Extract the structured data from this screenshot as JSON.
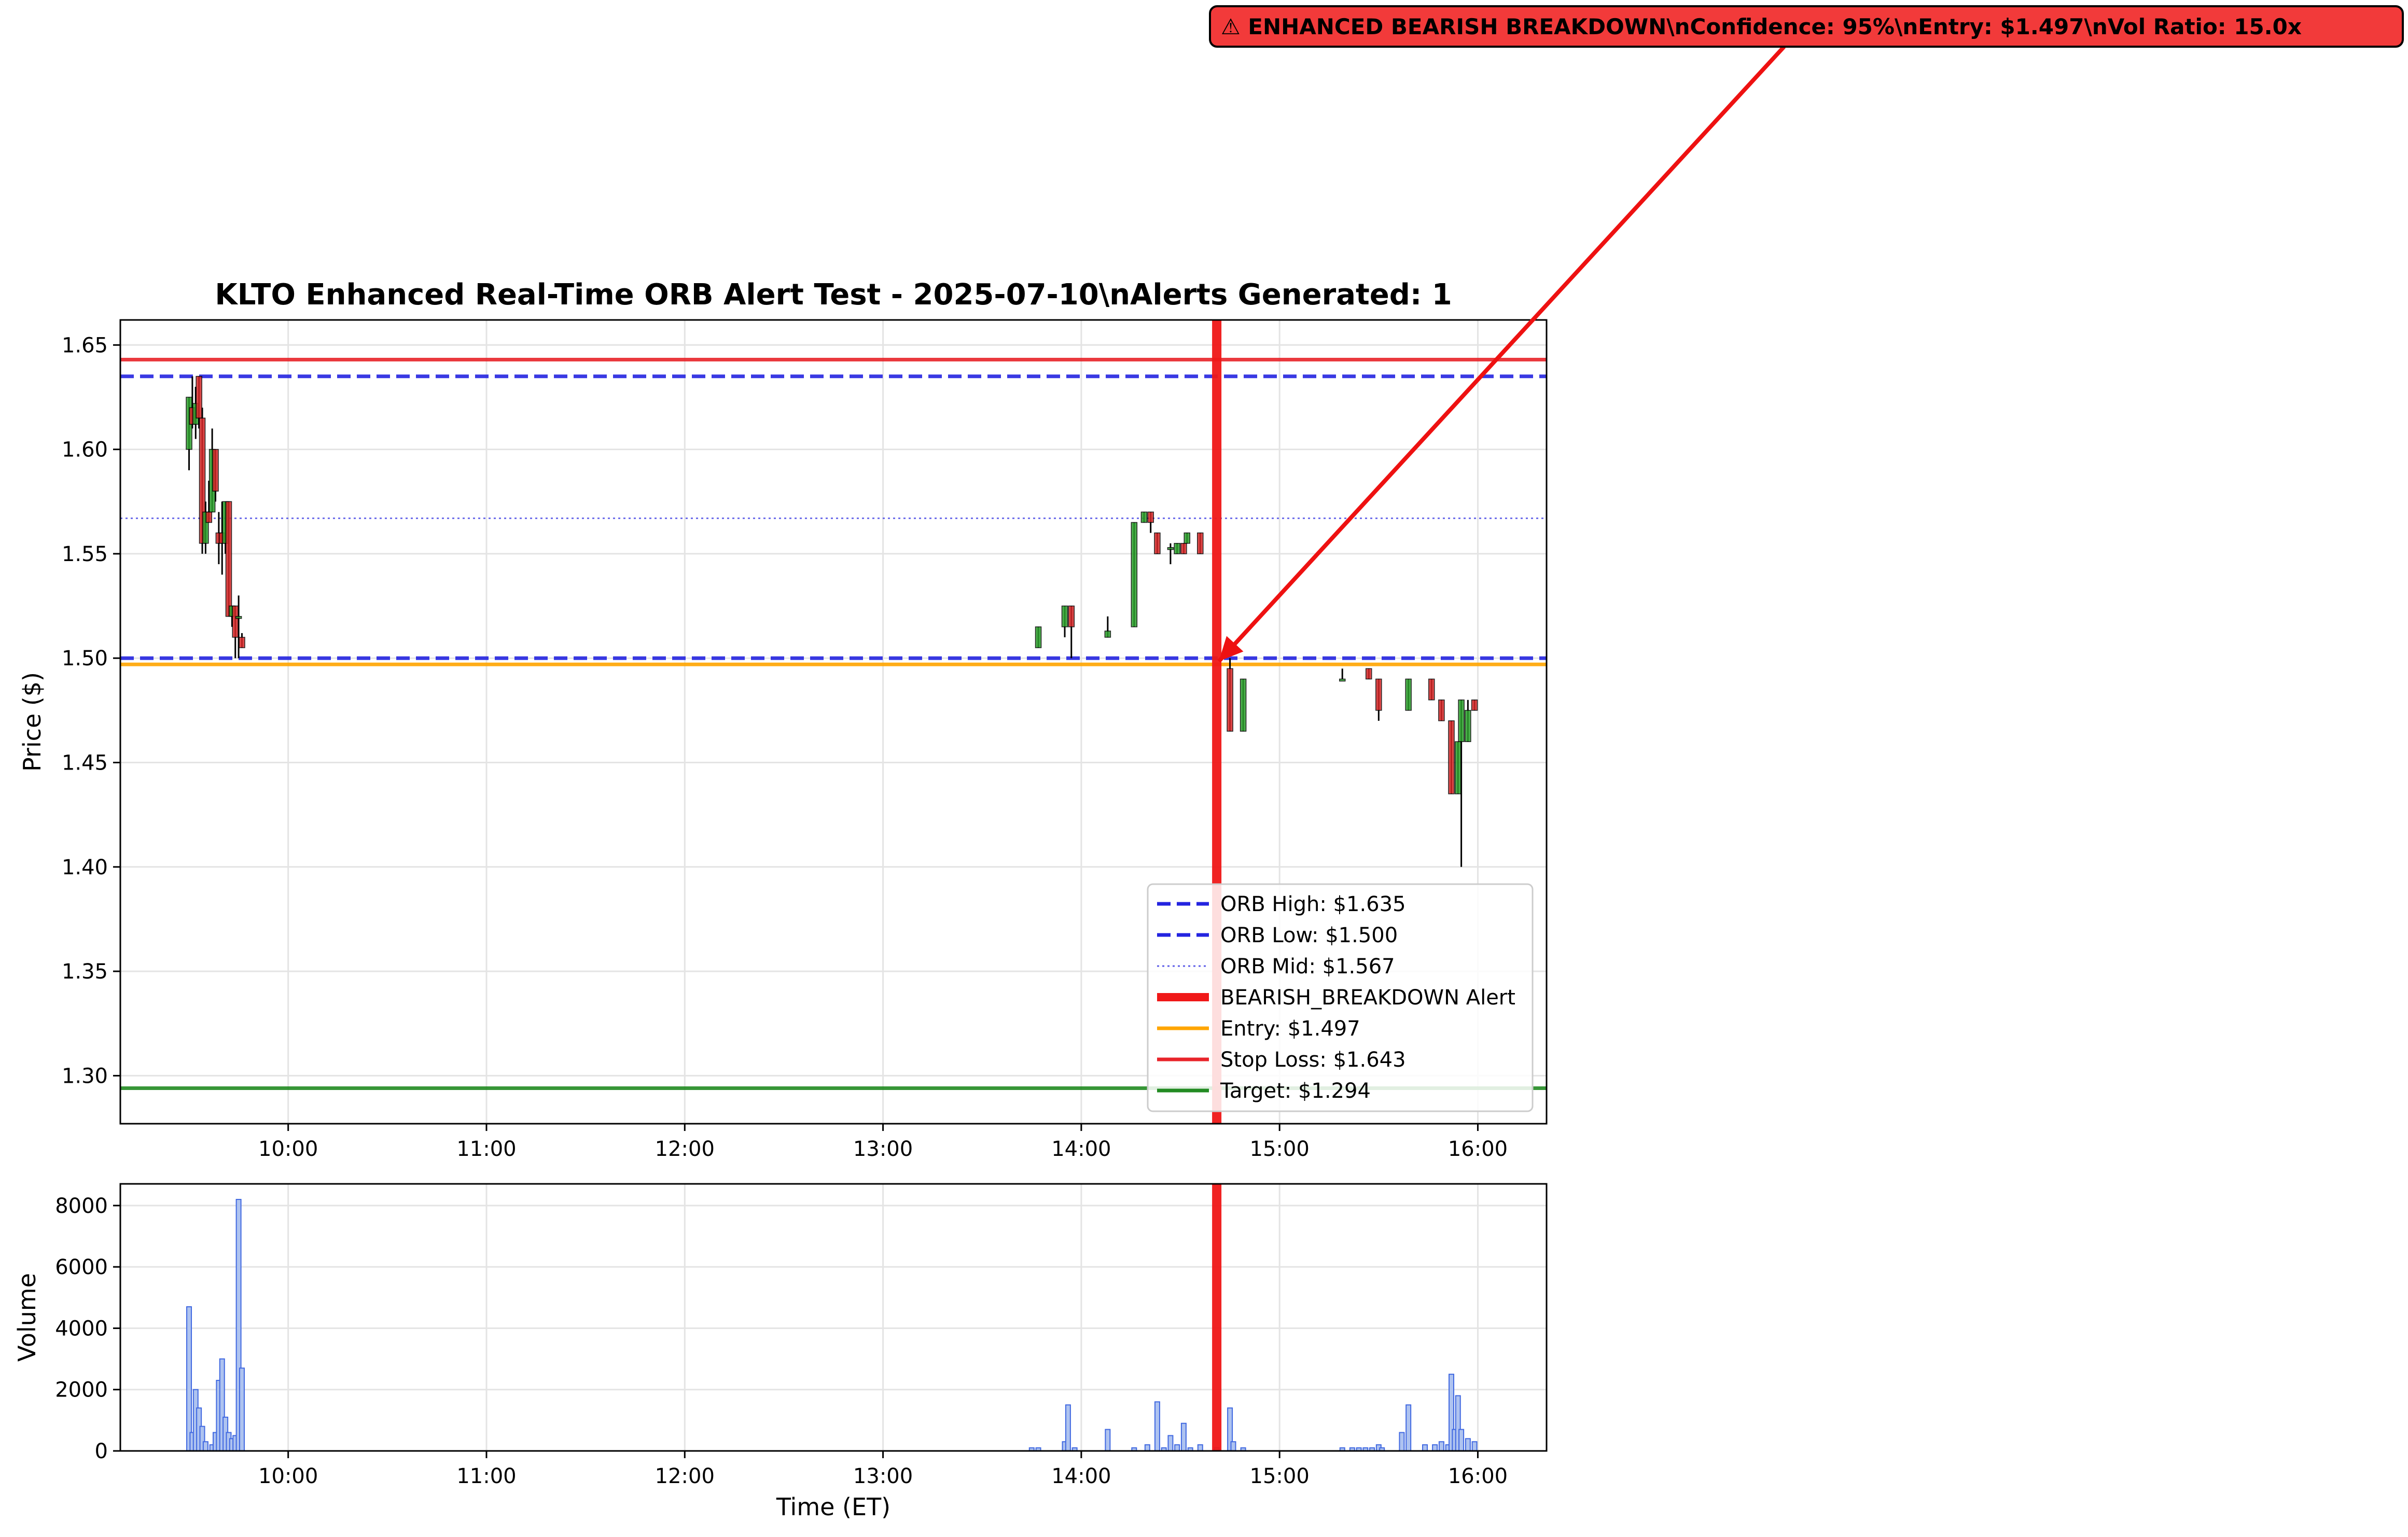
{
  "chart_data": [
    {
      "type": "candlestick",
      "title": "KLTO Enhanced Real-Time ORB Alert Test - 2025-07-10\\nAlerts Generated: 1",
      "ylabel": "Price ($)",
      "ylim": [
        1.277,
        1.662
      ],
      "x_tick_labels": [
        "10:00",
        "11:00",
        "12:00",
        "13:00",
        "14:00",
        "15:00",
        "16:00"
      ],
      "y_tick_labels": [
        "1.30",
        "1.35",
        "1.40",
        "1.45",
        "1.50",
        "1.55",
        "1.60",
        "1.65"
      ],
      "y_ticks": [
        1.3,
        1.35,
        1.4,
        1.45,
        1.5,
        1.55,
        1.6,
        1.65
      ],
      "grid": true,
      "legend_placement": "lower-right",
      "candle_colors": {
        "up": "#2ca02c",
        "down": "#d62728"
      },
      "candles": [
        {
          "t": "09:30",
          "o": 1.6,
          "h": 1.625,
          "l": 1.59,
          "c": 1.625
        },
        {
          "t": "09:31",
          "o": 1.62,
          "h": 1.635,
          "l": 1.61,
          "c": 1.612
        },
        {
          "t": "09:32",
          "o": 1.612,
          "h": 1.63,
          "l": 1.605,
          "c": 1.622
        },
        {
          "t": "09:33",
          "o": 1.635,
          "h": 1.635,
          "l": 1.61,
          "c": 1.615
        },
        {
          "t": "09:34",
          "o": 1.615,
          "h": 1.62,
          "l": 1.55,
          "c": 1.555
        },
        {
          "t": "09:35",
          "o": 1.555,
          "h": 1.575,
          "l": 1.55,
          "c": 1.57
        },
        {
          "t": "09:36",
          "o": 1.57,
          "h": 1.585,
          "l": 1.565,
          "c": 1.565
        },
        {
          "t": "09:37",
          "o": 1.57,
          "h": 1.61,
          "l": 1.57,
          "c": 1.6
        },
        {
          "t": "09:38",
          "o": 1.6,
          "h": 1.6,
          "l": 1.575,
          "c": 1.58
        },
        {
          "t": "09:39",
          "o": 1.56,
          "h": 1.57,
          "l": 1.545,
          "c": 1.555
        },
        {
          "t": "09:40",
          "o": 1.56,
          "h": 1.575,
          "l": 1.54,
          "c": 1.555
        },
        {
          "t": "09:41",
          "o": 1.555,
          "h": 1.575,
          "l": 1.55,
          "c": 1.575
        },
        {
          "t": "09:42",
          "o": 1.575,
          "h": 1.575,
          "l": 1.52,
          "c": 1.52
        },
        {
          "t": "09:43",
          "o": 1.52,
          "h": 1.525,
          "l": 1.515,
          "c": 1.525
        },
        {
          "t": "09:44",
          "o": 1.525,
          "h": 1.525,
          "l": 1.5,
          "c": 1.51
        },
        {
          "t": "09:45",
          "o": 1.52,
          "h": 1.53,
          "l": 1.5,
          "c": 1.52
        },
        {
          "t": "09:46",
          "o": 1.51,
          "h": 1.512,
          "l": 1.505,
          "c": 1.505
        },
        {
          "t": "13:47",
          "o": 1.505,
          "h": 1.515,
          "l": 1.505,
          "c": 1.515
        },
        {
          "t": "13:55",
          "o": 1.515,
          "h": 1.525,
          "l": 1.51,
          "c": 1.525
        },
        {
          "t": "13:57",
          "o": 1.525,
          "h": 1.525,
          "l": 1.5,
          "c": 1.515
        },
        {
          "t": "14:08",
          "o": 1.51,
          "h": 1.52,
          "l": 1.51,
          "c": 1.513
        },
        {
          "t": "14:16",
          "o": 1.515,
          "h": 1.565,
          "l": 1.515,
          "c": 1.565
        },
        {
          "t": "14:19",
          "o": 1.565,
          "h": 1.57,
          "l": 1.565,
          "c": 1.57
        },
        {
          "t": "14:21",
          "o": 1.57,
          "h": 1.57,
          "l": 1.56,
          "c": 1.565
        },
        {
          "t": "14:23",
          "o": 1.56,
          "h": 1.56,
          "l": 1.55,
          "c": 1.55
        },
        {
          "t": "14:27",
          "o": 1.553,
          "h": 1.555,
          "l": 1.545,
          "c": 1.553
        },
        {
          "t": "14:29",
          "o": 1.55,
          "h": 1.555,
          "l": 1.55,
          "c": 1.555
        },
        {
          "t": "14:31",
          "o": 1.555,
          "h": 1.555,
          "l": 1.55,
          "c": 1.55
        },
        {
          "t": "14:32",
          "o": 1.555,
          "h": 1.56,
          "l": 1.555,
          "c": 1.56
        },
        {
          "t": "14:36",
          "o": 1.56,
          "h": 1.56,
          "l": 1.55,
          "c": 1.55
        },
        {
          "t": "14:45",
          "o": 1.495,
          "h": 1.5,
          "l": 1.465,
          "c": 1.465
        },
        {
          "t": "14:49",
          "o": 1.465,
          "h": 1.49,
          "l": 1.465,
          "c": 1.49
        },
        {
          "t": "15:19",
          "o": 1.49,
          "h": 1.495,
          "l": 1.49,
          "c": 1.49
        },
        {
          "t": "15:27",
          "o": 1.495,
          "h": 1.495,
          "l": 1.49,
          "c": 1.49
        },
        {
          "t": "15:30",
          "o": 1.49,
          "h": 1.49,
          "l": 1.47,
          "c": 1.475
        },
        {
          "t": "15:39",
          "o": 1.475,
          "h": 1.49,
          "l": 1.475,
          "c": 1.49
        },
        {
          "t": "15:46",
          "o": 1.49,
          "h": 1.49,
          "l": 1.48,
          "c": 1.48
        },
        {
          "t": "15:49",
          "o": 1.48,
          "h": 1.48,
          "l": 1.47,
          "c": 1.47
        },
        {
          "t": "15:52",
          "o": 1.47,
          "h": 1.47,
          "l": 1.435,
          "c": 1.435
        },
        {
          "t": "15:54",
          "o": 1.435,
          "h": 1.46,
          "l": 1.435,
          "c": 1.46
        },
        {
          "t": "15:55",
          "o": 1.46,
          "h": 1.48,
          "l": 1.4,
          "c": 1.48
        },
        {
          "t": "15:57",
          "o": 1.46,
          "h": 1.48,
          "l": 1.46,
          "c": 1.475
        },
        {
          "t": "15:59",
          "o": 1.48,
          "h": 1.48,
          "l": 1.475,
          "c": 1.475
        }
      ],
      "levels": [
        {
          "name": "ORB High: $1.635",
          "value": 1.635,
          "color": "#2424e0",
          "style": "dashed"
        },
        {
          "name": "ORB Low: $1.500",
          "value": 1.5,
          "color": "#2424e0",
          "style": "dashed"
        },
        {
          "name": "ORB Mid: $1.567",
          "value": 1.567,
          "color": "#6060e8",
          "style": "dotted"
        },
        {
          "name": "Entry: $1.497",
          "value": 1.497,
          "color": "#ffa500",
          "style": "solid"
        },
        {
          "name": "Stop Loss: $1.643",
          "value": 1.643,
          "color": "#e8242a",
          "style": "solid"
        },
        {
          "name": "Target: $1.294",
          "value": 1.294,
          "color": "#228b22",
          "style": "solid"
        }
      ],
      "alert": {
        "name": "BEARISH_BREAKDOWN Alert",
        "time": "14:41",
        "price": 1.497,
        "color": "#f01818",
        "annotation": "⚠ ENHANCED BEARISH BREAKDOWN\\nConfidence: 95%\\nEntry: $1.497\\nVol Ratio: 15.0x",
        "annotation_bg": "#f23a3a"
      },
      "legend": [
        {
          "label": "ORB High: $1.635",
          "color": "#2424e0",
          "style": "dashed"
        },
        {
          "label": "ORB Low: $1.500",
          "color": "#2424e0",
          "style": "dashed"
        },
        {
          "label": "ORB Mid: $1.567",
          "color": "#6060e8",
          "style": "dotted"
        },
        {
          "label": "BEARISH_BREAKDOWN Alert",
          "color": "#f01818",
          "style": "thick"
        },
        {
          "label": "Entry: $1.497",
          "color": "#ffa500",
          "style": "solid"
        },
        {
          "label": "Stop Loss: $1.643",
          "color": "#e8242a",
          "style": "solid"
        },
        {
          "label": "Target: $1.294",
          "color": "#228b22",
          "style": "solid"
        }
      ]
    },
    {
      "type": "bar",
      "xlabel": "Time (ET)",
      "ylabel": "Volume",
      "ylim": [
        0,
        8200
      ],
      "x_tick_labels": [
        "10:00",
        "11:00",
        "12:00",
        "13:00",
        "14:00",
        "15:00",
        "16:00"
      ],
      "y_tick_labels": [
        "0",
        "2000",
        "4000",
        "6000",
        "8000"
      ],
      "y_ticks": [
        0,
        2000,
        4000,
        6000,
        8000
      ],
      "grid": true,
      "bar_fill": "#aec3f0",
      "bar_edge": "#4169e1",
      "bars": [
        {
          "t": "09:30",
          "v": 4700
        },
        {
          "t": "09:31",
          "v": 600
        },
        {
          "t": "09:32",
          "v": 2000
        },
        {
          "t": "09:33",
          "v": 1400
        },
        {
          "t": "09:34",
          "v": 800
        },
        {
          "t": "09:35",
          "v": 300
        },
        {
          "t": "09:37",
          "v": 200
        },
        {
          "t": "09:38",
          "v": 600
        },
        {
          "t": "09:39",
          "v": 2300
        },
        {
          "t": "09:40",
          "v": 3000
        },
        {
          "t": "09:41",
          "v": 1100
        },
        {
          "t": "09:42",
          "v": 600
        },
        {
          "t": "09:43",
          "v": 400
        },
        {
          "t": "09:44",
          "v": 500
        },
        {
          "t": "09:45",
          "v": 8200
        },
        {
          "t": "09:46",
          "v": 2700
        },
        {
          "t": "13:45",
          "v": 100
        },
        {
          "t": "13:47",
          "v": 100
        },
        {
          "t": "13:55",
          "v": 300
        },
        {
          "t": "13:56",
          "v": 1500
        },
        {
          "t": "13:58",
          "v": 100
        },
        {
          "t": "14:08",
          "v": 700
        },
        {
          "t": "14:16",
          "v": 100
        },
        {
          "t": "14:20",
          "v": 200
        },
        {
          "t": "14:23",
          "v": 1600
        },
        {
          "t": "14:25",
          "v": 100
        },
        {
          "t": "14:27",
          "v": 500
        },
        {
          "t": "14:29",
          "v": 200
        },
        {
          "t": "14:31",
          "v": 900
        },
        {
          "t": "14:33",
          "v": 100
        },
        {
          "t": "14:36",
          "v": 200
        },
        {
          "t": "14:41",
          "v": 100
        },
        {
          "t": "14:45",
          "v": 1400
        },
        {
          "t": "14:46",
          "v": 300
        },
        {
          "t": "14:49",
          "v": 100
        },
        {
          "t": "15:19",
          "v": 100
        },
        {
          "t": "15:22",
          "v": 100
        },
        {
          "t": "15:24",
          "v": 100
        },
        {
          "t": "15:26",
          "v": 100
        },
        {
          "t": "15:28",
          "v": 100
        },
        {
          "t": "15:30",
          "v": 200
        },
        {
          "t": "15:31",
          "v": 100
        },
        {
          "t": "15:37",
          "v": 600
        },
        {
          "t": "15:39",
          "v": 1500
        },
        {
          "t": "15:44",
          "v": 200
        },
        {
          "t": "15:47",
          "v": 200
        },
        {
          "t": "15:49",
          "v": 300
        },
        {
          "t": "15:51",
          "v": 200
        },
        {
          "t": "15:52",
          "v": 2500
        },
        {
          "t": "15:53",
          "v": 700
        },
        {
          "t": "15:54",
          "v": 1800
        },
        {
          "t": "15:55",
          "v": 700
        },
        {
          "t": "15:57",
          "v": 400
        },
        {
          "t": "15:59",
          "v": 300
        }
      ]
    }
  ]
}
